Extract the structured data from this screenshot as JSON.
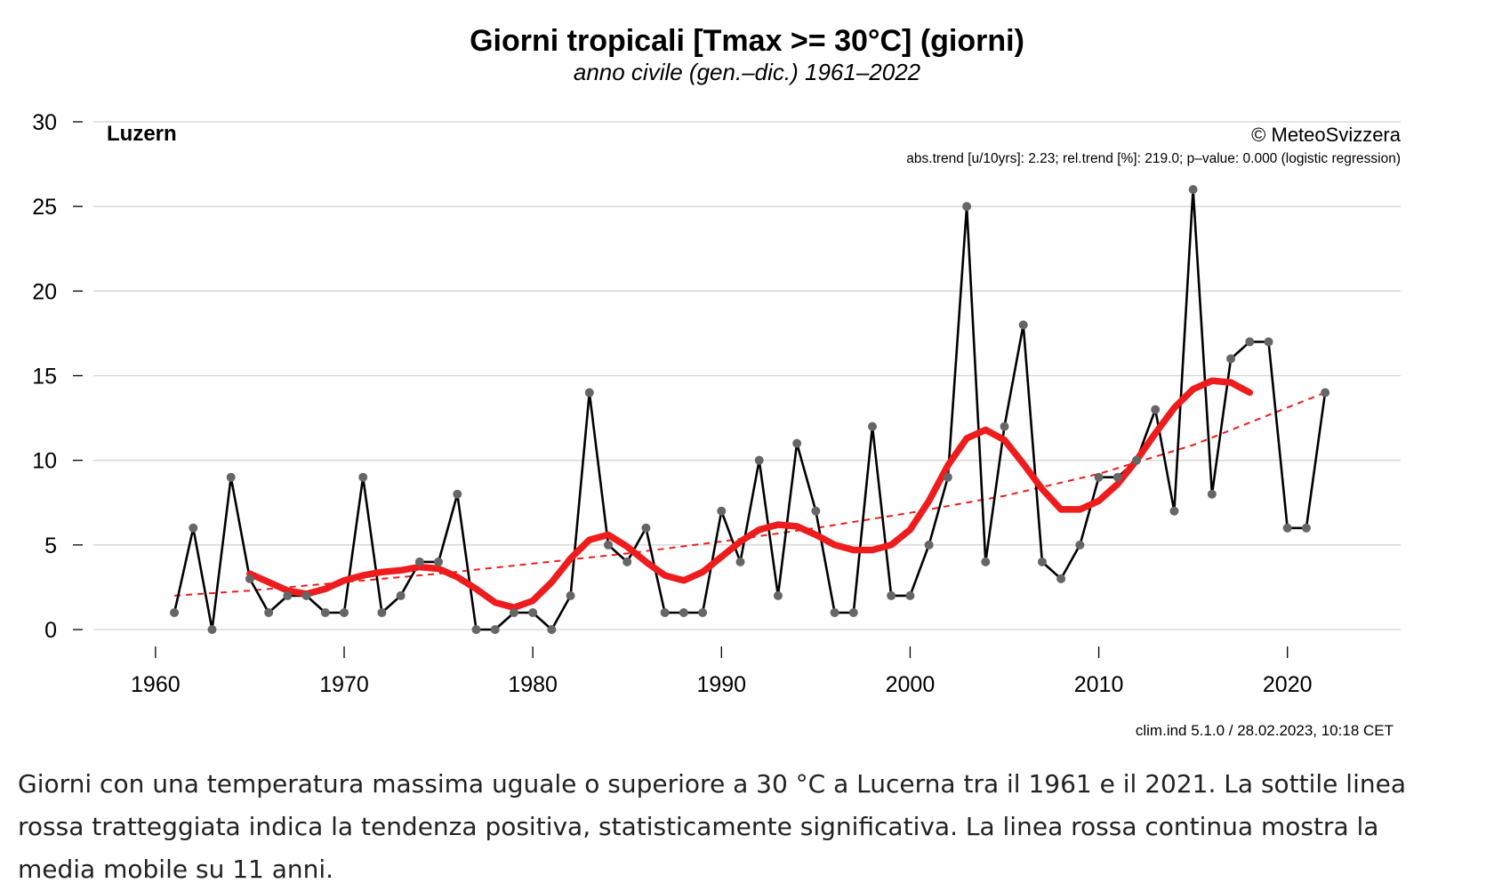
{
  "chart_data": {
    "type": "line",
    "title": "Giorni tropicali [Tmax >= 30°C] (giorni)",
    "subtitle": "anno civile (gen.–dic.) 1961–2022",
    "station": "Luzern",
    "copyright": "© MeteoSvizzera",
    "trend_note": "abs.trend [u/10yrs]:  2.23; rel.trend [%]: 219.0; p–value: 0.000 (logistic regression)",
    "footer": "clim.ind 5.1.0 / 28.02.2023, 10:18 CET",
    "xlim": [
      1956,
      2026
    ],
    "ylim": [
      0,
      30
    ],
    "x_ticks": [
      1960,
      1970,
      1980,
      1990,
      2000,
      2010,
      2020
    ],
    "y_ticks": [
      0,
      5,
      10,
      15,
      20,
      25,
      30
    ],
    "grid": true,
    "series": [
      {
        "x": [
          1961,
          1962,
          1963,
          1964,
          1965,
          1966,
          1967,
          1968,
          1969,
          1970,
          1971,
          1972,
          1973,
          1974,
          1975,
          1976,
          1977,
          1978,
          1979,
          1980,
          1981,
          1982,
          1983,
          1984,
          1985,
          1986,
          1987,
          1988,
          1989,
          1990,
          1991,
          1992,
          1993,
          1994,
          1995,
          1996,
          1997,
          1998,
          1999,
          2000,
          2001,
          2002,
          2003,
          2004,
          2005,
          2006,
          2007,
          2008,
          2009,
          2010,
          2011,
          2012,
          2013,
          2014,
          2015,
          2016,
          2017,
          2018,
          2019,
          2020,
          2021,
          2022
        ],
        "values": [
          1,
          6,
          0,
          9,
          3,
          1,
          2,
          2,
          1,
          1,
          9,
          1,
          2,
          4,
          4,
          8,
          0,
          0,
          1,
          1,
          0,
          2,
          14,
          5,
          4,
          6,
          1,
          1,
          1,
          7,
          4,
          10,
          2,
          11,
          7,
          1,
          1,
          12,
          2,
          2,
          5,
          9,
          25,
          4,
          12,
          18,
          4,
          3,
          5,
          9,
          9,
          10,
          13,
          7,
          26,
          8,
          16,
          17,
          17,
          6,
          6,
          14
        ],
        "color": "#000000"
      },
      {
        "x": [
          1965,
          1966,
          1967,
          1968,
          1969,
          1970,
          1971,
          1972,
          1973,
          1974,
          1975,
          1976,
          1977,
          1978,
          1979,
          1980,
          1981,
          1982,
          1983,
          1984,
          1985,
          1986,
          1987,
          1988,
          1989,
          1990,
          1991,
          1992,
          1993,
          1994,
          1995,
          1996,
          1997,
          1998,
          1999,
          2000,
          2001,
          2002,
          2003,
          2004,
          2005,
          2006,
          2007,
          2008,
          2009,
          2010,
          2011,
          2012,
          2013,
          2014,
          2015,
          2016,
          2017,
          2018
        ],
        "values": [
          3.3,
          2.8,
          2.3,
          2.1,
          2.4,
          2.9,
          3.2,
          3.4,
          3.5,
          3.7,
          3.6,
          3.1,
          2.4,
          1.6,
          1.3,
          1.7,
          2.8,
          4.2,
          5.3,
          5.6,
          4.9,
          4.0,
          3.2,
          2.9,
          3.4,
          4.3,
          5.2,
          5.9,
          6.2,
          6.1,
          5.6,
          5.0,
          4.7,
          4.7,
          5.0,
          5.9,
          7.6,
          9.7,
          11.3,
          11.8,
          11.2,
          9.8,
          8.3,
          7.1,
          7.1,
          7.6,
          8.6,
          10.0,
          11.6,
          13.1,
          14.2,
          14.7,
          14.6,
          14.0
        ],
        "color": "#ee1c1c"
      },
      {
        "x": [
          1961,
          1965,
          1970,
          1975,
          1980,
          1985,
          1990,
          1995,
          2000,
          2005,
          2010,
          2015,
          2022
        ],
        "values": [
          2.0,
          2.3,
          2.8,
          3.3,
          3.9,
          4.5,
          5.2,
          6.0,
          6.9,
          7.9,
          9.2,
          10.9,
          14.0
        ],
        "color": "#ee1c1c"
      }
    ]
  },
  "caption": "Giorni con una temperatura massima uguale o superiore a 30 °C a Lucerna tra il 1961 e il 2021. La sottile linea rossa tratteggiata indica la tendenza positiva, statisticamente significativa. La linea rossa continua mostra la media mobile su 11 anni."
}
